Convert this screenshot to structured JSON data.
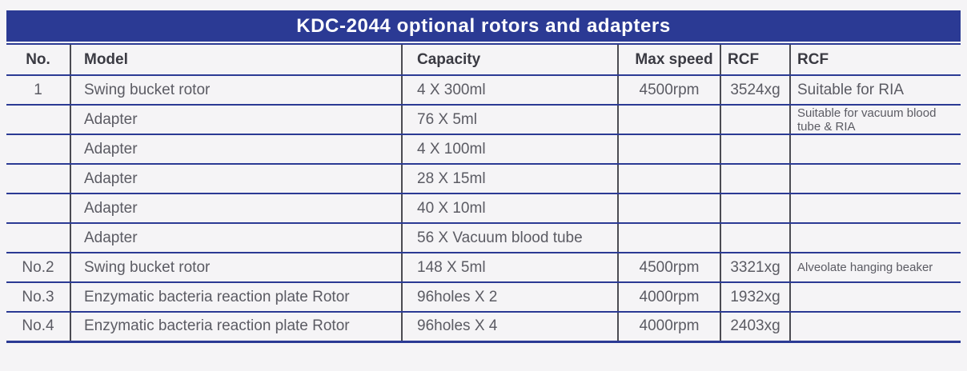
{
  "header": {
    "title": "KDC-2044 optional rotors and adapters"
  },
  "table": {
    "columns": [
      "No.",
      "Model",
      "Capacity",
      "Max speed",
      "RCF",
      "RCF"
    ],
    "rows": [
      {
        "no": "1",
        "model": "Swing bucket rotor",
        "capacity": "4 X 300ml",
        "max_speed": "4500rpm",
        "rcf": "3524xg",
        "remark": "Suitable for RIA",
        "remark_small": false
      },
      {
        "no": "",
        "model": "Adapter",
        "capacity": "76 X 5ml",
        "max_speed": "",
        "rcf": "",
        "remark": "Suitable for vacuum blood tube & RIA",
        "remark_small": true
      },
      {
        "no": "",
        "model": "Adapter",
        "capacity": "4 X 100ml",
        "max_speed": "",
        "rcf": "",
        "remark": "",
        "remark_small": false
      },
      {
        "no": "",
        "model": "Adapter",
        "capacity": "28 X 15ml",
        "max_speed": "",
        "rcf": "",
        "remark": "",
        "remark_small": false
      },
      {
        "no": "",
        "model": "Adapter",
        "capacity": "40 X 10ml",
        "max_speed": "",
        "rcf": "",
        "remark": "",
        "remark_small": false
      },
      {
        "no": "",
        "model": "Adapter",
        "capacity": "56 X Vacuum blood tube",
        "max_speed": "",
        "rcf": "",
        "remark": "",
        "remark_small": false
      },
      {
        "no": "No.2",
        "model": "Swing bucket rotor",
        "capacity": "148 X 5ml",
        "max_speed": "4500rpm",
        "rcf": "3321xg",
        "remark": "Alveolate hanging beaker",
        "remark_small": true
      },
      {
        "no": "No.3",
        "model": "Enzymatic bacteria reaction plate Rotor",
        "capacity": "96holes X 2",
        "max_speed": "4000rpm",
        "rcf": "1932xg",
        "remark": "",
        "remark_small": false
      },
      {
        "no": "No.4",
        "model": "Enzymatic bacteria reaction plate Rotor",
        "capacity": "96holes X 4",
        "max_speed": "4000rpm",
        "rcf": "2403xg",
        "remark": "",
        "remark_small": false
      }
    ]
  },
  "colors": {
    "background": "#f5f4f6",
    "title_bar": "#2b3a94",
    "title_text": "#ffffff",
    "row_line": "#2b3a94",
    "column_line": "#4b4b52",
    "header_text": "#3a3a42",
    "body_text": "#5b5b63"
  }
}
